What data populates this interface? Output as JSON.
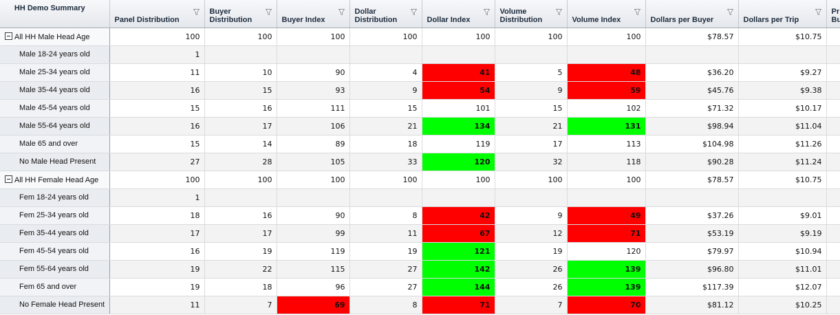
{
  "columns": [
    {
      "label": "HH Demo Summary",
      "filter": false
    },
    {
      "label": "Panel Distribution",
      "filter": true
    },
    {
      "label": "Buyer Distribution",
      "filter": true
    },
    {
      "label": "Buyer Index",
      "filter": true
    },
    {
      "label": "Dollar Distribution",
      "filter": true
    },
    {
      "label": "Dollar Index",
      "filter": true
    },
    {
      "label": "Volume Distribution",
      "filter": true
    },
    {
      "label": "Volume Index",
      "filter": true
    },
    {
      "label": "Dollars per Buyer",
      "filter": true
    },
    {
      "label": "Dollars per Trip",
      "filter": true
    },
    {
      "label": "Pr Bu",
      "filter": false
    }
  ],
  "highlight_colors": {
    "low": "#ff0000",
    "high": "#00ff00"
  },
  "rows": [
    {
      "label": "All HH Male Head Age",
      "group": true,
      "cells": [
        {
          "v": "100"
        },
        {
          "v": "100"
        },
        {
          "v": "100"
        },
        {
          "v": "100"
        },
        {
          "v": "100"
        },
        {
          "v": "100"
        },
        {
          "v": "100"
        },
        {
          "v": "$78.57"
        },
        {
          "v": "$10.75"
        },
        {
          "v": ""
        }
      ]
    },
    {
      "label": "Male 18-24 years old",
      "cells": [
        {
          "v": "1"
        },
        {
          "v": ""
        },
        {
          "v": ""
        },
        {
          "v": ""
        },
        {
          "v": ""
        },
        {
          "v": ""
        },
        {
          "v": ""
        },
        {
          "v": ""
        },
        {
          "v": ""
        },
        {
          "v": ""
        }
      ]
    },
    {
      "label": "Male 25-34 years old",
      "cells": [
        {
          "v": "11"
        },
        {
          "v": "10"
        },
        {
          "v": "90"
        },
        {
          "v": "4"
        },
        {
          "v": "41",
          "h": "red"
        },
        {
          "v": "5"
        },
        {
          "v": "48",
          "h": "red"
        },
        {
          "v": "$36.20"
        },
        {
          "v": "$9.27"
        },
        {
          "v": ""
        }
      ]
    },
    {
      "label": "Male 35-44 years old",
      "cells": [
        {
          "v": "16"
        },
        {
          "v": "15"
        },
        {
          "v": "93"
        },
        {
          "v": "9"
        },
        {
          "v": "54",
          "h": "red"
        },
        {
          "v": "9"
        },
        {
          "v": "59",
          "h": "red"
        },
        {
          "v": "$45.76"
        },
        {
          "v": "$9.38"
        },
        {
          "v": ""
        }
      ]
    },
    {
      "label": "Male 45-54 years old",
      "cells": [
        {
          "v": "15"
        },
        {
          "v": "16"
        },
        {
          "v": "111"
        },
        {
          "v": "15"
        },
        {
          "v": "101"
        },
        {
          "v": "15"
        },
        {
          "v": "102"
        },
        {
          "v": "$71.32"
        },
        {
          "v": "$10.17"
        },
        {
          "v": ""
        }
      ]
    },
    {
      "label": "Male 55-64 years old",
      "cells": [
        {
          "v": "16"
        },
        {
          "v": "17"
        },
        {
          "v": "106"
        },
        {
          "v": "21"
        },
        {
          "v": "134",
          "h": "green"
        },
        {
          "v": "21"
        },
        {
          "v": "131",
          "h": "green"
        },
        {
          "v": "$98.94"
        },
        {
          "v": "$11.04"
        },
        {
          "v": ""
        }
      ]
    },
    {
      "label": "Male 65 and over",
      "cells": [
        {
          "v": "15"
        },
        {
          "v": "14"
        },
        {
          "v": "89"
        },
        {
          "v": "18"
        },
        {
          "v": "119"
        },
        {
          "v": "17"
        },
        {
          "v": "113"
        },
        {
          "v": "$104.98"
        },
        {
          "v": "$11.26"
        },
        {
          "v": ""
        }
      ]
    },
    {
      "label": "No Male Head Present",
      "cells": [
        {
          "v": "27"
        },
        {
          "v": "28"
        },
        {
          "v": "105"
        },
        {
          "v": "33"
        },
        {
          "v": "120",
          "h": "green"
        },
        {
          "v": "32"
        },
        {
          "v": "118"
        },
        {
          "v": "$90.28"
        },
        {
          "v": "$11.24"
        },
        {
          "v": ""
        }
      ]
    },
    {
      "label": "All HH Female Head Age",
      "group": true,
      "cells": [
        {
          "v": "100"
        },
        {
          "v": "100"
        },
        {
          "v": "100"
        },
        {
          "v": "100"
        },
        {
          "v": "100"
        },
        {
          "v": "100"
        },
        {
          "v": "100"
        },
        {
          "v": "$78.57"
        },
        {
          "v": "$10.75"
        },
        {
          "v": ""
        }
      ]
    },
    {
      "label": "Fem 18-24 years old",
      "cells": [
        {
          "v": "1"
        },
        {
          "v": ""
        },
        {
          "v": ""
        },
        {
          "v": ""
        },
        {
          "v": ""
        },
        {
          "v": ""
        },
        {
          "v": ""
        },
        {
          "v": ""
        },
        {
          "v": ""
        },
        {
          "v": ""
        }
      ]
    },
    {
      "label": "Fem 25-34 years old",
      "cells": [
        {
          "v": "18"
        },
        {
          "v": "16"
        },
        {
          "v": "90"
        },
        {
          "v": "8"
        },
        {
          "v": "42",
          "h": "red"
        },
        {
          "v": "9"
        },
        {
          "v": "49",
          "h": "red"
        },
        {
          "v": "$37.26"
        },
        {
          "v": "$9.01"
        },
        {
          "v": ""
        }
      ]
    },
    {
      "label": "Fem 35-44 years old",
      "cells": [
        {
          "v": "17"
        },
        {
          "v": "17"
        },
        {
          "v": "99"
        },
        {
          "v": "11"
        },
        {
          "v": "67",
          "h": "red"
        },
        {
          "v": "12"
        },
        {
          "v": "71",
          "h": "red"
        },
        {
          "v": "$53.19"
        },
        {
          "v": "$9.19"
        },
        {
          "v": ""
        }
      ]
    },
    {
      "label": "Fem 45-54 years old",
      "cells": [
        {
          "v": "16"
        },
        {
          "v": "19"
        },
        {
          "v": "119"
        },
        {
          "v": "19"
        },
        {
          "v": "121",
          "h": "green"
        },
        {
          "v": "19"
        },
        {
          "v": "120"
        },
        {
          "v": "$79.97"
        },
        {
          "v": "$10.94"
        },
        {
          "v": ""
        }
      ]
    },
    {
      "label": "Fem 55-64 years old",
      "cells": [
        {
          "v": "19"
        },
        {
          "v": "22"
        },
        {
          "v": "115"
        },
        {
          "v": "27"
        },
        {
          "v": "142",
          "h": "green"
        },
        {
          "v": "26"
        },
        {
          "v": "139",
          "h": "green"
        },
        {
          "v": "$96.80"
        },
        {
          "v": "$11.01"
        },
        {
          "v": ""
        }
      ]
    },
    {
      "label": "Fem 65 and over",
      "cells": [
        {
          "v": "19"
        },
        {
          "v": "18"
        },
        {
          "v": "96"
        },
        {
          "v": "27"
        },
        {
          "v": "144",
          "h": "green"
        },
        {
          "v": "26"
        },
        {
          "v": "139",
          "h": "green"
        },
        {
          "v": "$117.39"
        },
        {
          "v": "$12.07"
        },
        {
          "v": ""
        }
      ]
    },
    {
      "label": "No Female Head Present",
      "cells": [
        {
          "v": "11"
        },
        {
          "v": "7"
        },
        {
          "v": "69",
          "h": "red"
        },
        {
          "v": "8"
        },
        {
          "v": "71",
          "h": "red"
        },
        {
          "v": "7"
        },
        {
          "v": "70",
          "h": "red"
        },
        {
          "v": "$81.12"
        },
        {
          "v": "$10.25"
        },
        {
          "v": ""
        }
      ]
    }
  ]
}
